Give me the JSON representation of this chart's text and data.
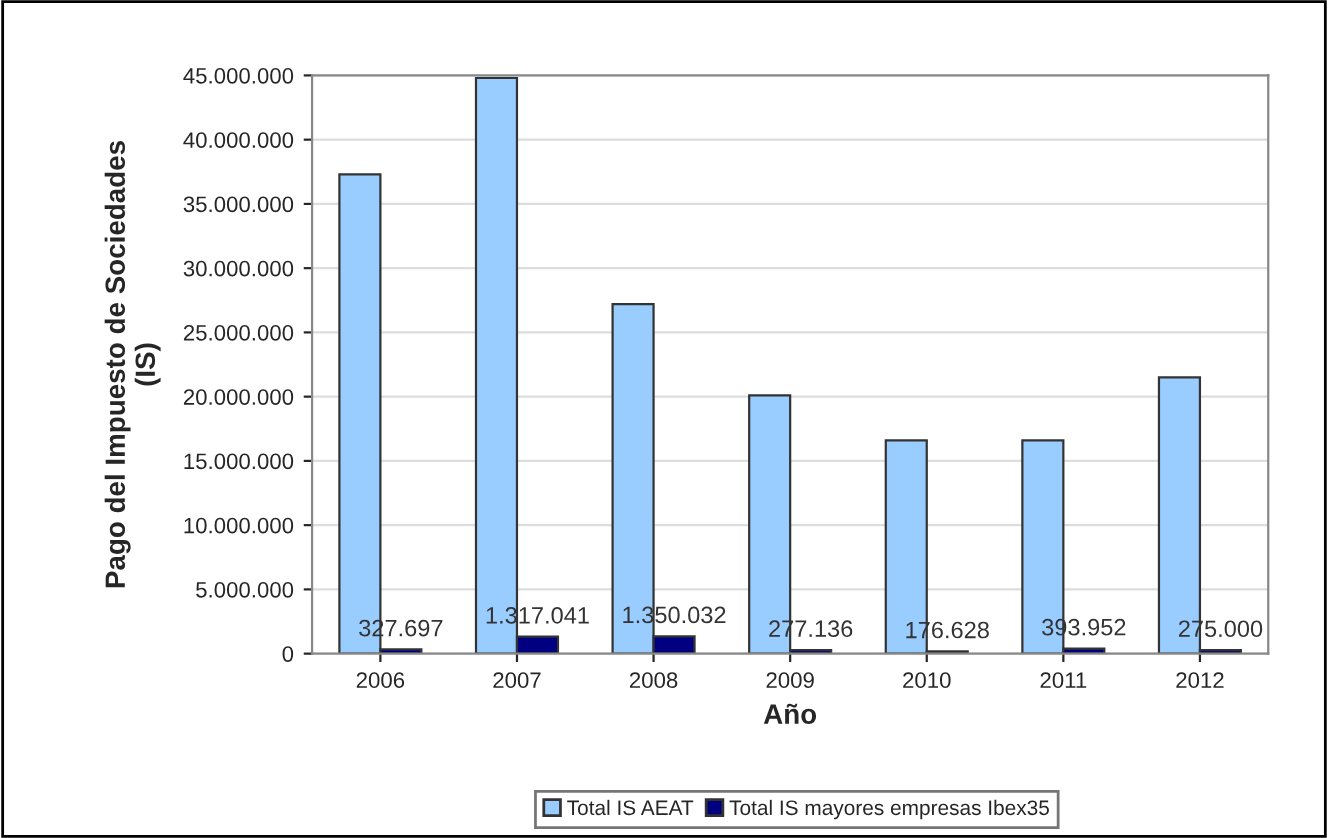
{
  "chart_data": {
    "type": "bar",
    "xlabel": "Año",
    "ylabel": "Pago del Impuesto de Sociedades\n(IS)",
    "categories": [
      "2006",
      "2007",
      "2008",
      "2009",
      "2010",
      "2011",
      "2012"
    ],
    "series": [
      {
        "name": "Total IS AEAT",
        "color": "#99ccff",
        "values": [
          37300000,
          44800000,
          27200000,
          20100000,
          16600000,
          16600000,
          21500000
        ]
      },
      {
        "name": "Total IS mayores empresas Ibex35",
        "color": "#000080",
        "values": [
          327697,
          1317041,
          1350032,
          277136,
          176628,
          393952,
          275000
        ],
        "value_labels": [
          "327.697",
          "1.317.041",
          "1.350.032",
          "277.136",
          "176.628",
          "393.952",
          "275.000"
        ]
      }
    ],
    "ylim": [
      0,
      45000000
    ],
    "yticks": [
      {
        "value": 0,
        "label": "0"
      },
      {
        "value": 5000000,
        "label": "5.000.000"
      },
      {
        "value": 10000000,
        "label": "10.000.000"
      },
      {
        "value": 15000000,
        "label": "15.000.000"
      },
      {
        "value": 20000000,
        "label": "20.000.000"
      },
      {
        "value": 25000000,
        "label": "25.000.000"
      },
      {
        "value": 30000000,
        "label": "30.000.000"
      },
      {
        "value": 35000000,
        "label": "35.000.000"
      },
      {
        "value": 40000000,
        "label": "40.000.000"
      },
      {
        "value": 45000000,
        "label": "45.000.000"
      }
    ],
    "grid": "y",
    "legend": "bottom"
  }
}
